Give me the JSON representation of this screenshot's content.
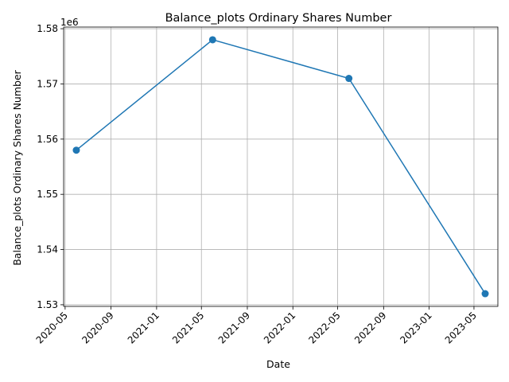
{
  "chart_data": {
    "type": "line",
    "title": "Balance_plots Ordinary Shares Number",
    "xlabel": "Date",
    "ylabel": "Balance_plots Ordinary Shares Number",
    "y_offset_label": "1e6",
    "grid": true,
    "x": [
      "2020-05-31",
      "2021-05-31",
      "2022-05-31",
      "2023-05-31"
    ],
    "series": [
      {
        "values": [
          1558000,
          1578000,
          1571000,
          1532000
        ],
        "color": "#1f77b4",
        "marker": "circle"
      }
    ],
    "xlim": [
      "2020-04-27",
      "2023-07-04"
    ],
    "ylim": [
      1529700,
      1580300
    ],
    "x_ticks": [
      "2020-05-01",
      "2020-09-01",
      "2021-01-01",
      "2021-05-01",
      "2021-09-01",
      "2022-01-01",
      "2022-05-01",
      "2022-09-01",
      "2023-01-01",
      "2023-05-01"
    ],
    "x_tick_labels": [
      "2020-05",
      "2020-09",
      "2021-01",
      "2021-05",
      "2021-09",
      "2022-01",
      "2022-05",
      "2022-09",
      "2023-01",
      "2023-05"
    ],
    "y_ticks": [
      1530000,
      1540000,
      1550000,
      1560000,
      1570000,
      1580000
    ],
    "y_tick_labels": [
      "1.53",
      "1.54",
      "1.55",
      "1.56",
      "1.57",
      "1.58"
    ]
  }
}
